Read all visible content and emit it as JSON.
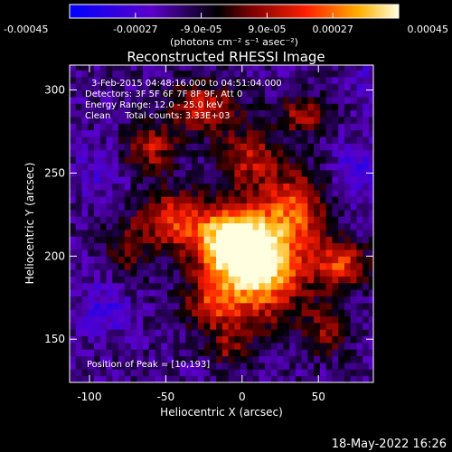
{
  "chart_data": {
    "type": "heatmap",
    "title": "Reconstructed RHESSI Image",
    "xlabel": "Heliocentric X (arcsec)",
    "ylabel": "Heliocentric Y (arcsec)",
    "xlim": [
      -113,
      86
    ],
    "ylim": [
      124,
      315
    ],
    "xticks": [
      -100,
      -50,
      0,
      50
    ],
    "yticks": [
      150,
      200,
      250,
      300
    ],
    "colorbar": {
      "ticks": [
        "-0.00045",
        "-0.00027",
        "-9.0e-05",
        "9.0e-05",
        "0.00027",
        "0.00045"
      ],
      "range": [
        -0.00045,
        0.00045
      ],
      "unit_label": "(photons cm⁻² s⁻¹ asec⁻²)"
    },
    "annotations": [
      "3-Feb-2015 04:48:16.000 to 04:51:04.000",
      "Detectors: 3F 5F 6F 7F 8F 9F, Att 0",
      "Energy Range: 12.0 - 25.0 keV",
      "Clean     Total counts: 3.33E+03"
    ],
    "peak_label": "Position of Peak = [10,193]",
    "peak": [
      10,
      193
    ],
    "components": [
      {
        "x": 10,
        "y": 195,
        "sx": 22,
        "sy": 22,
        "amp": 1.0
      },
      {
        "x": -8,
        "y": 210,
        "sx": 16,
        "sy": 14,
        "amp": 0.75
      },
      {
        "x": -45,
        "y": 222,
        "sx": 14,
        "sy": 12,
        "amp": 0.55
      },
      {
        "x": -60,
        "y": 265,
        "sx": 12,
        "sy": 10,
        "amp": 0.45
      },
      {
        "x": -25,
        "y": 290,
        "sx": 16,
        "sy": 10,
        "amp": 0.5
      },
      {
        "x": 5,
        "y": 260,
        "sx": 14,
        "sy": 12,
        "amp": 0.45
      },
      {
        "x": 35,
        "y": 230,
        "sx": 14,
        "sy": 16,
        "amp": 0.5
      },
      {
        "x": 40,
        "y": 285,
        "sx": 12,
        "sy": 8,
        "amp": 0.4
      },
      {
        "x": -20,
        "y": 170,
        "sx": 12,
        "sy": 10,
        "amp": 0.4
      },
      {
        "x": 65,
        "y": 195,
        "sx": 12,
        "sy": 10,
        "amp": 0.55
      },
      {
        "x": 55,
        "y": 155,
        "sx": 10,
        "sy": 10,
        "amp": 0.35
      },
      {
        "x": -75,
        "y": 205,
        "sx": 10,
        "sy": 14,
        "amp": 0.3
      },
      {
        "x": -10,
        "y": 145,
        "sx": 10,
        "sy": 8,
        "amp": 0.3
      },
      {
        "x": -95,
        "y": 250,
        "sx": 10,
        "sy": 12,
        "amp": -0.2
      },
      {
        "x": -90,
        "y": 170,
        "sx": 12,
        "sy": 12,
        "amp": -0.3
      },
      {
        "x": 75,
        "y": 250,
        "sx": 10,
        "sy": 14,
        "amp": -0.3
      },
      {
        "x": 85,
        "y": 305,
        "sx": 10,
        "sy": 10,
        "amp": -0.2
      }
    ]
  },
  "footer_timestamp": "18-May-2022 16:26"
}
